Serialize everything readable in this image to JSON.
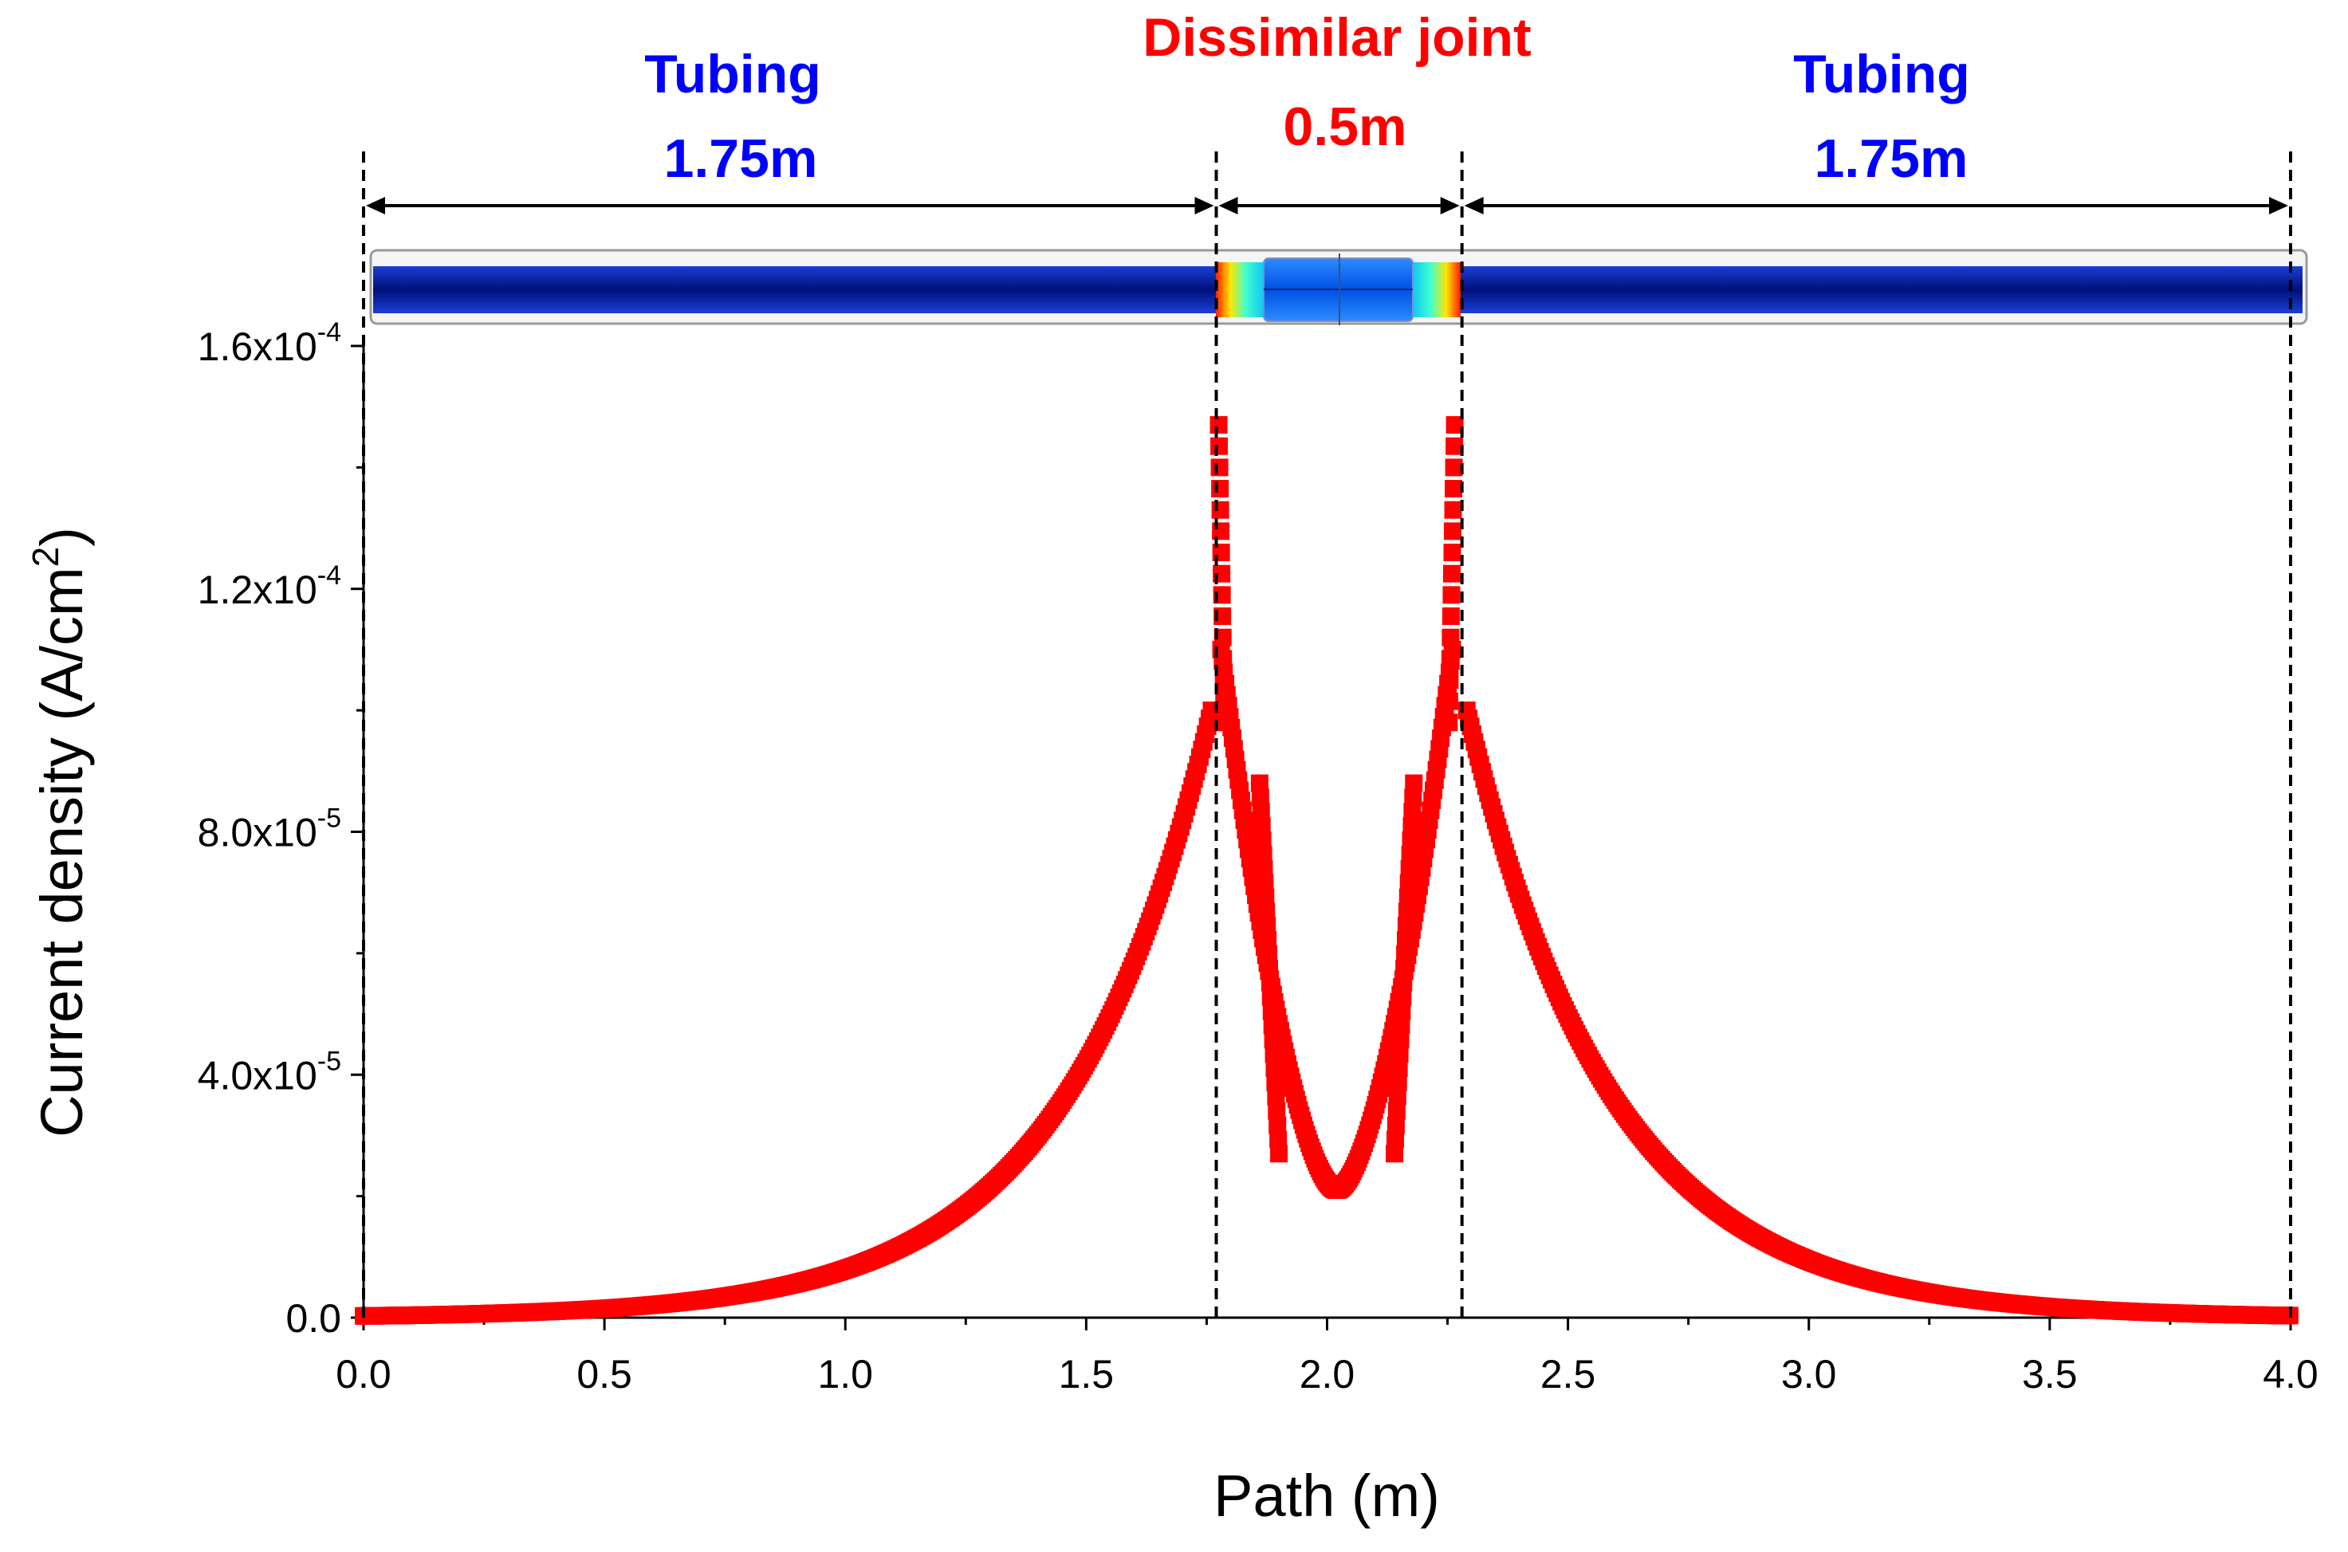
{
  "chart_data": {
    "type": "scatter",
    "title": "",
    "xlabel": "Path (m)",
    "ylabel_main": "Current density (A/cm",
    "ylabel_sup": "2",
    "ylabel_close": ")",
    "xlim": [
      0,
      4
    ],
    "ylim": [
      0,
      0.00016
    ],
    "x_ticks": [
      {
        "value": 0.0,
        "label": "0.0"
      },
      {
        "value": 0.5,
        "label": "0.5"
      },
      {
        "value": 1.0,
        "label": "1.0"
      },
      {
        "value": 1.5,
        "label": "1.5"
      },
      {
        "value": 2.0,
        "label": "2.0"
      },
      {
        "value": 2.5,
        "label": "2.5"
      },
      {
        "value": 3.0,
        "label": "3.0"
      },
      {
        "value": 3.5,
        "label": "3.5"
      },
      {
        "value": 4.0,
        "label": "4.0"
      }
    ],
    "y_ticks": [
      {
        "value": 0,
        "mantissa": "0.0",
        "exp": ""
      },
      {
        "value": 4e-05,
        "mantissa": "4.0x10",
        "exp": "-5"
      },
      {
        "value": 8e-05,
        "mantissa": "8.0x10",
        "exp": "-5"
      },
      {
        "value": 0.00012,
        "mantissa": "1.2x10",
        "exp": "-4"
      },
      {
        "value": 0.00016,
        "mantissa": "1.6x10",
        "exp": "-4"
      }
    ],
    "series": [
      {
        "name": "Current density",
        "color": "#ff0000",
        "marker": "square",
        "model": {
          "left_tubing": {
            "x_range": [
              0,
              1.76
            ],
            "peak_x": 1.76,
            "peak_y": 0.0001,
            "decay_length_m": 0.3
          },
          "right_tubing": {
            "x_range": [
              2.29,
              4.0
            ],
            "peak_x": 2.29,
            "peak_y": 0.0001,
            "decay_length_m": 0.3
          },
          "joint_edge_spikes": [
            {
              "x": 1.775,
              "y": 0.000147
            },
            {
              "x": 2.265,
              "y": 0.000147
            }
          ],
          "joint_inner_curve": {
            "x_range": [
              1.78,
              2.26
            ],
            "edge_y": 0.00011,
            "min_x": 2.02,
            "min_y": 2.1e-05
          },
          "joint_branches": [
            {
              "x_range": [
                1.86,
                1.9
              ],
              "y_range": [
                8.8e-05,
                2.7e-05
              ]
            },
            {
              "x_range": [
                2.14,
                2.18
              ],
              "y_range": [
                8.8e-05,
                2.7e-05
              ]
            }
          ]
        }
      }
    ],
    "boundaries_m": [
      0,
      1.77,
      2.28,
      4.0
    ],
    "annotations": {
      "left_tubing": {
        "name": "Tubing",
        "length": "1.75m",
        "color": "#0000ff"
      },
      "joint": {
        "name": "Dissimilar joint",
        "length": "0.5m",
        "color": "#ff0000"
      },
      "right_tubing": {
        "name": "Tubing",
        "length": "1.75m",
        "color": "#0000ff"
      }
    },
    "pipe_colormap": [
      "#000090",
      "#0040ff",
      "#00c8ff",
      "#ffff00",
      "#ff0000"
    ]
  }
}
